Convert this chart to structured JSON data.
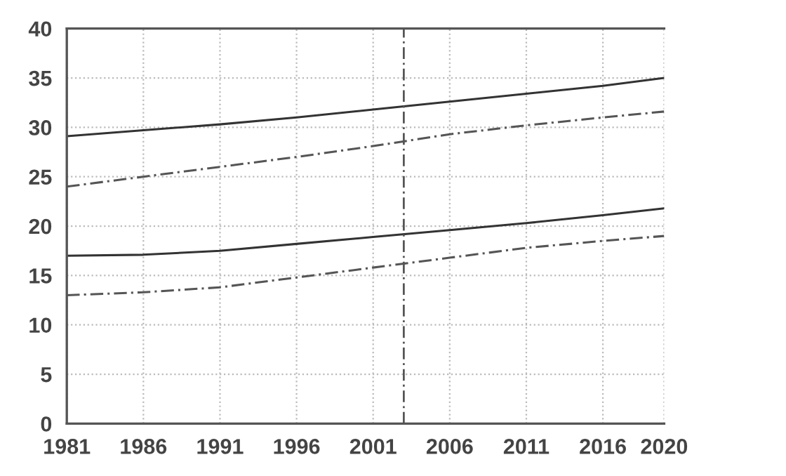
{
  "chart_data": {
    "type": "line",
    "x": [
      1981,
      1986,
      1991,
      1996,
      2001,
      2006,
      2011,
      2016,
      2020
    ],
    "series": [
      {
        "color": "#333333",
        "line_style": "solid",
        "values": [
          29.1,
          29.7,
          30.3,
          31.0,
          31.8,
          32.6,
          33.4,
          34.2,
          35.0
        ]
      },
      {
        "color": "#555555",
        "line_style": "dashed",
        "values": [
          24.0,
          25.0,
          26.0,
          27.0,
          28.1,
          29.3,
          30.2,
          31.0,
          31.6
        ]
      },
      {
        "color": "#333333",
        "line_style": "solid",
        "values": [
          17.0,
          17.1,
          17.5,
          18.2,
          18.9,
          19.6,
          20.3,
          21.1,
          21.8
        ]
      },
      {
        "color": "#555555",
        "line_style": "dashed",
        "values": [
          13.0,
          13.3,
          13.8,
          14.8,
          15.8,
          16.8,
          17.8,
          18.5,
          19.0
        ]
      }
    ],
    "xlim": [
      1981,
      2020
    ],
    "xticks": [
      1981,
      1986,
      1991,
      1996,
      2001,
      2006,
      2011,
      2016,
      2020
    ],
    "ylim": [
      0,
      40
    ],
    "yticks": [
      0,
      5,
      10,
      15,
      20,
      25,
      30,
      35,
      40
    ],
    "ref_lines": [
      {
        "axis": "x",
        "value": 2003,
        "color": "#555555",
        "line_style": "dashed"
      }
    ],
    "grid": true,
    "legend": false,
    "marker": "none"
  }
}
